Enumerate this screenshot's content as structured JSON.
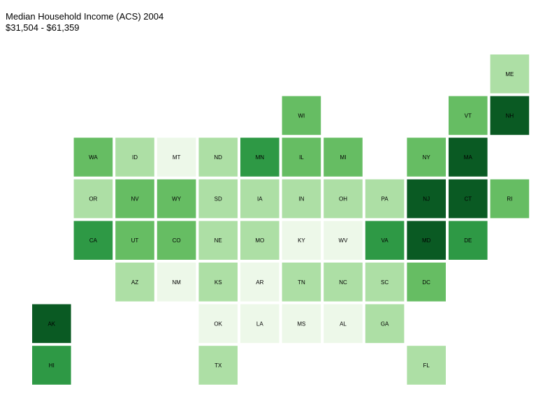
{
  "title": "Median Household Income (ACS) 2004",
  "subtitle": "$31,504 - $61,359",
  "palette": {
    "1": "#edf8e9",
    "2": "#addfa5",
    "3": "#66bd63",
    "4": "#2e9945",
    "5": "#0a5a23"
  },
  "states": [
    {
      "abbr": "ME",
      "col": 11,
      "row": 0,
      "bin": 2
    },
    {
      "abbr": "WI",
      "col": 6,
      "row": 1,
      "bin": 3
    },
    {
      "abbr": "VT",
      "col": 10,
      "row": 1,
      "bin": 3
    },
    {
      "abbr": "NH",
      "col": 11,
      "row": 1,
      "bin": 5
    },
    {
      "abbr": "WA",
      "col": 1,
      "row": 2,
      "bin": 3
    },
    {
      "abbr": "ID",
      "col": 2,
      "row": 2,
      "bin": 2
    },
    {
      "abbr": "MT",
      "col": 3,
      "row": 2,
      "bin": 1
    },
    {
      "abbr": "ND",
      "col": 4,
      "row": 2,
      "bin": 2
    },
    {
      "abbr": "MN",
      "col": 5,
      "row": 2,
      "bin": 4
    },
    {
      "abbr": "IL",
      "col": 6,
      "row": 2,
      "bin": 3
    },
    {
      "abbr": "MI",
      "col": 7,
      "row": 2,
      "bin": 3
    },
    {
      "abbr": "NY",
      "col": 9,
      "row": 2,
      "bin": 3
    },
    {
      "abbr": "MA",
      "col": 10,
      "row": 2,
      "bin": 5
    },
    {
      "abbr": "OR",
      "col": 1,
      "row": 3,
      "bin": 2
    },
    {
      "abbr": "NV",
      "col": 2,
      "row": 3,
      "bin": 3
    },
    {
      "abbr": "WY",
      "col": 3,
      "row": 3,
      "bin": 3
    },
    {
      "abbr": "SD",
      "col": 4,
      "row": 3,
      "bin": 2
    },
    {
      "abbr": "IA",
      "col": 5,
      "row": 3,
      "bin": 2
    },
    {
      "abbr": "IN",
      "col": 6,
      "row": 3,
      "bin": 2
    },
    {
      "abbr": "OH",
      "col": 7,
      "row": 3,
      "bin": 2
    },
    {
      "abbr": "PA",
      "col": 8,
      "row": 3,
      "bin": 2
    },
    {
      "abbr": "NJ",
      "col": 9,
      "row": 3,
      "bin": 5
    },
    {
      "abbr": "CT",
      "col": 10,
      "row": 3,
      "bin": 5
    },
    {
      "abbr": "RI",
      "col": 11,
      "row": 3,
      "bin": 3
    },
    {
      "abbr": "CA",
      "col": 1,
      "row": 4,
      "bin": 4
    },
    {
      "abbr": "UT",
      "col": 2,
      "row": 4,
      "bin": 3
    },
    {
      "abbr": "CO",
      "col": 3,
      "row": 4,
      "bin": 3
    },
    {
      "abbr": "NE",
      "col": 4,
      "row": 4,
      "bin": 2
    },
    {
      "abbr": "MO",
      "col": 5,
      "row": 4,
      "bin": 2
    },
    {
      "abbr": "KY",
      "col": 6,
      "row": 4,
      "bin": 1
    },
    {
      "abbr": "WV",
      "col": 7,
      "row": 4,
      "bin": 1
    },
    {
      "abbr": "VA",
      "col": 8,
      "row": 4,
      "bin": 4
    },
    {
      "abbr": "MD",
      "col": 9,
      "row": 4,
      "bin": 5
    },
    {
      "abbr": "DE",
      "col": 10,
      "row": 4,
      "bin": 4
    },
    {
      "abbr": "AZ",
      "col": 2,
      "row": 5,
      "bin": 2
    },
    {
      "abbr": "NM",
      "col": 3,
      "row": 5,
      "bin": 1
    },
    {
      "abbr": "KS",
      "col": 4,
      "row": 5,
      "bin": 2
    },
    {
      "abbr": "AR",
      "col": 5,
      "row": 5,
      "bin": 1
    },
    {
      "abbr": "TN",
      "col": 6,
      "row": 5,
      "bin": 2
    },
    {
      "abbr": "NC",
      "col": 7,
      "row": 5,
      "bin": 2
    },
    {
      "abbr": "SC",
      "col": 8,
      "row": 5,
      "bin": 2
    },
    {
      "abbr": "DC",
      "col": 9,
      "row": 5,
      "bin": 3
    },
    {
      "abbr": "AK",
      "col": 0,
      "row": 6,
      "bin": 5
    },
    {
      "abbr": "OK",
      "col": 4,
      "row": 6,
      "bin": 1
    },
    {
      "abbr": "LA",
      "col": 5,
      "row": 6,
      "bin": 1
    },
    {
      "abbr": "MS",
      "col": 6,
      "row": 6,
      "bin": 1
    },
    {
      "abbr": "AL",
      "col": 7,
      "row": 6,
      "bin": 1
    },
    {
      "abbr": "GA",
      "col": 8,
      "row": 6,
      "bin": 2
    },
    {
      "abbr": "HI",
      "col": 0,
      "row": 7,
      "bin": 4
    },
    {
      "abbr": "TX",
      "col": 4,
      "row": 7,
      "bin": 2
    },
    {
      "abbr": "FL",
      "col": 9,
      "row": 7,
      "bin": 2
    }
  ]
}
